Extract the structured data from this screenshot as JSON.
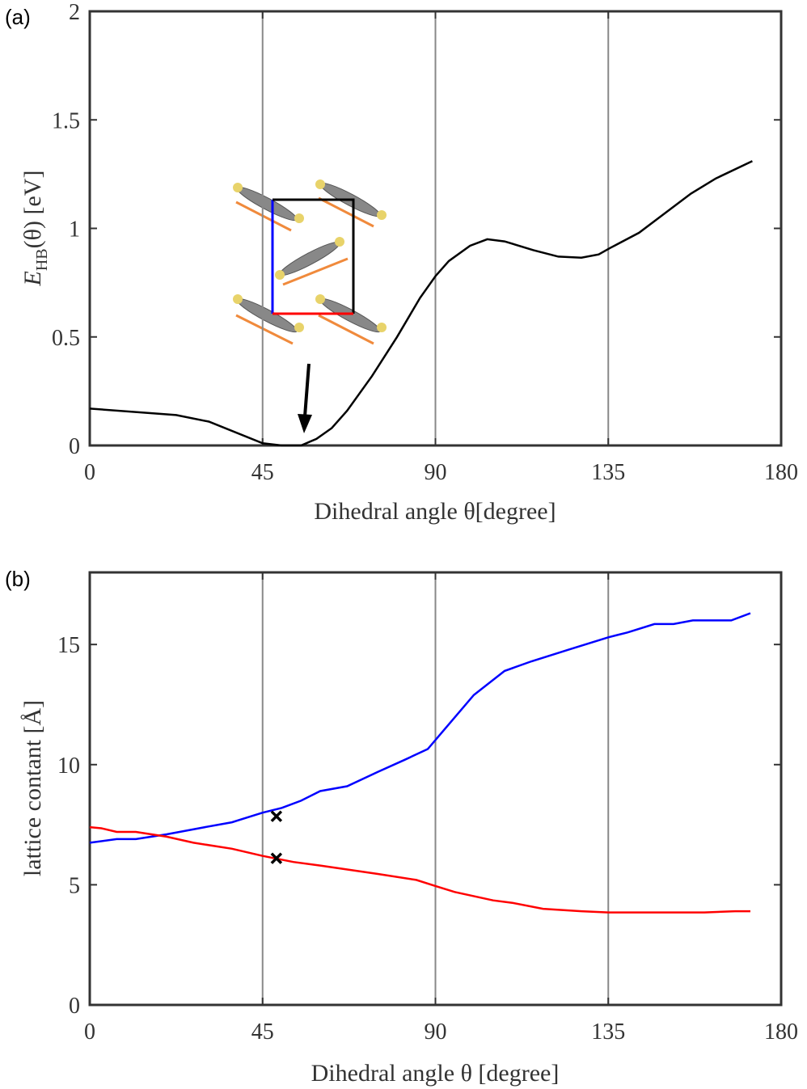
{
  "chart_data": [
    {
      "type": "line",
      "panel_label": "(a)",
      "x_label": "Dihedral angle θ[degree]",
      "y_label": {
        "symbol": "E",
        "subscript": "HB",
        "rest": "(θ)  [eV]"
      },
      "x": [
        0,
        22.5,
        31,
        45,
        50,
        55,
        59,
        63,
        67,
        73.5,
        80,
        86,
        90,
        93.5,
        99,
        103.5,
        108,
        115.5,
        122,
        128,
        132.5,
        135.5,
        143,
        149,
        156.5,
        163,
        172.5
      ],
      "values": [
        0.17,
        0.14,
        0.11,
        0.01,
        0.0,
        0.0,
        0.03,
        0.08,
        0.16,
        0.32,
        0.5,
        0.68,
        0.78,
        0.85,
        0.92,
        0.95,
        0.94,
        0.9,
        0.87,
        0.865,
        0.88,
        0.91,
        0.98,
        1.06,
        1.16,
        1.23,
        1.31
      ],
      "color": "#000000",
      "xlim": [
        0,
        180
      ],
      "xticks": [
        0,
        45,
        90,
        135,
        180
      ],
      "ylim": [
        0,
        2
      ],
      "yticks": [
        0,
        0.5,
        1,
        1.5,
        2
      ],
      "grid": "x"
    },
    {
      "type": "line",
      "panel_label": "(b)",
      "x_label": "Dihedral angle θ [degree]",
      "y_label": "lattice contant [Å]",
      "series": [
        {
          "color": "#0000ff",
          "x": [
            0,
            7,
            12,
            20,
            30,
            37,
            45,
            50,
            55,
            60,
            67,
            75,
            82,
            88,
            92,
            100,
            108,
            115,
            125,
            135,
            140,
            147,
            152,
            157,
            167,
            172
          ],
          "values": [
            6.75,
            6.9,
            6.9,
            7.1,
            7.4,
            7.6,
            8.0,
            8.2,
            8.5,
            8.9,
            9.1,
            9.7,
            10.2,
            10.65,
            11.4,
            12.9,
            13.9,
            14.3,
            14.8,
            15.3,
            15.5,
            15.85,
            15.85,
            16.0,
            16.0,
            16.3
          ]
        },
        {
          "color": "#ff0000",
          "x": [
            0,
            3,
            7,
            12,
            20,
            27,
            37,
            45,
            53,
            60,
            75,
            85,
            90,
            95,
            105,
            110,
            118,
            128,
            135,
            145,
            160,
            168,
            172
          ],
          "values": [
            7.4,
            7.35,
            7.2,
            7.2,
            7.0,
            6.75,
            6.5,
            6.2,
            5.95,
            5.8,
            5.45,
            5.2,
            4.95,
            4.7,
            4.35,
            4.25,
            4.0,
            3.9,
            3.85,
            3.85,
            3.85,
            3.9,
            3.9
          ]
        }
      ],
      "markers": {
        "x": [
          48.6,
          48.6
        ],
        "values": [
          7.85,
          6.1
        ],
        "color": "#000000"
      },
      "xlim": [
        0,
        180
      ],
      "xticks": [
        0,
        45,
        90,
        135,
        180
      ],
      "ylim": [
        0,
        18
      ],
      "yticks": [
        0,
        5,
        10,
        15
      ],
      "grid": "x"
    }
  ]
}
